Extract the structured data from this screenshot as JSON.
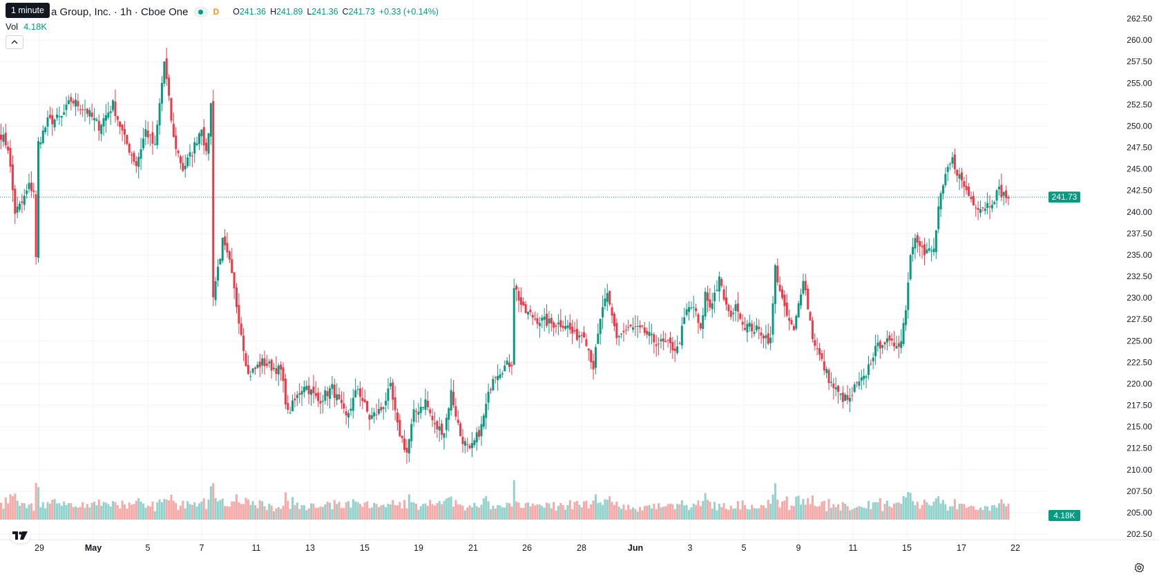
{
  "header": {
    "symbol_title": "a Group, Inc. · 1h · Cboe One",
    "source_badge": "D",
    "ohlc": {
      "open_label": "O",
      "open_value": "241.36",
      "high_label": "H",
      "high_value": "241.89",
      "low_label": "L",
      "low_value": "241.36",
      "close_label": "C",
      "close_value": "241.73",
      "change": "+0.33 (+0.14%)"
    },
    "tooltip": "1 minute"
  },
  "volume_legend": {
    "label": "Vol",
    "value": "4.18K"
  },
  "colors": {
    "up": "#089981",
    "down": "#F23645",
    "up_volume": "#92D2CC",
    "down_volume": "#F7A9A7",
    "grid": "#F0F3FA",
    "text": "#131722"
  },
  "icons": {
    "collapse": "chevron-up-icon",
    "logo": "tradingview-logo-icon",
    "settings": "gear-icon"
  },
  "chart_data": {
    "type": "candlestick",
    "timeframe": "1h",
    "price_axis": {
      "ticks": [
        "262.50",
        "260.00",
        "257.50",
        "255.00",
        "252.50",
        "250.00",
        "247.50",
        "245.00",
        "242.50",
        "240.00",
        "237.50",
        "235.00",
        "232.50",
        "230.00",
        "227.50",
        "225.00",
        "222.50",
        "220.00",
        "217.50",
        "215.00",
        "212.50",
        "210.00",
        "207.50",
        "205.00",
        "202.50"
      ],
      "ylim": [
        201.5,
        263.5
      ]
    },
    "last_price_label": "241.73",
    "last_volume_label": "4.18K",
    "time_axis": {
      "ticks": [
        {
          "label": "29",
          "bold": false
        },
        {
          "label": "May",
          "bold": true
        },
        {
          "label": "5",
          "bold": false
        },
        {
          "label": "7",
          "bold": false
        },
        {
          "label": "11",
          "bold": false
        },
        {
          "label": "13",
          "bold": false
        },
        {
          "label": "15",
          "bold": false
        },
        {
          "label": "19",
          "bold": false
        },
        {
          "label": "21",
          "bold": false
        },
        {
          "label": "26",
          "bold": false
        },
        {
          "label": "28",
          "bold": false
        },
        {
          "label": "Jun",
          "bold": true
        },
        {
          "label": "3",
          "bold": false
        },
        {
          "label": "5",
          "bold": false
        },
        {
          "label": "9",
          "bold": false
        },
        {
          "label": "11",
          "bold": false
        },
        {
          "label": "15",
          "bold": false
        },
        {
          "label": "17",
          "bold": false
        },
        {
          "label": "22",
          "bold": false
        }
      ]
    },
    "keypoints": [
      [
        0,
        249.0
      ],
      [
        3,
        247.5
      ],
      [
        6,
        240.0
      ],
      [
        9,
        241.0
      ],
      [
        12,
        243.0
      ],
      [
        14,
        242.5
      ],
      [
        15,
        234.5
      ],
      [
        16,
        248.0
      ],
      [
        20,
        250.5
      ],
      [
        26,
        251.0
      ],
      [
        30,
        253.0
      ],
      [
        36,
        252.0
      ],
      [
        42,
        250.0
      ],
      [
        48,
        252.5
      ],
      [
        53,
        248.5
      ],
      [
        58,
        245.5
      ],
      [
        62,
        249.5
      ],
      [
        66,
        247.5
      ],
      [
        70,
        257.5
      ],
      [
        72,
        253.0
      ],
      [
        74,
        248.5
      ],
      [
        78,
        245.0
      ],
      [
        82,
        247.0
      ],
      [
        86,
        250.0
      ],
      [
        88,
        246.5
      ],
      [
        90,
        252.5
      ],
      [
        91,
        230.5
      ],
      [
        95,
        236.5
      ],
      [
        98,
        234.0
      ],
      [
        103,
        226.0
      ],
      [
        106,
        221.0
      ],
      [
        112,
        222.5
      ],
      [
        120,
        221.5
      ],
      [
        123,
        216.5
      ],
      [
        130,
        220.0
      ],
      [
        136,
        218.0
      ],
      [
        142,
        219.5
      ],
      [
        148,
        216.0
      ],
      [
        153,
        219.5
      ],
      [
        158,
        216.0
      ],
      [
        163,
        217.0
      ],
      [
        167,
        219.5
      ],
      [
        170,
        215.0
      ],
      [
        174,
        212.0
      ],
      [
        177,
        216.5
      ],
      [
        182,
        218.0
      ],
      [
        186,
        215.0
      ],
      [
        190,
        214.5
      ],
      [
        193,
        219.0
      ],
      [
        197,
        214.0
      ],
      [
        201,
        212.0
      ],
      [
        206,
        215.0
      ],
      [
        211,
        221.0
      ],
      [
        216,
        222.0
      ],
      [
        219,
        222.5
      ],
      [
        220,
        231.5
      ],
      [
        224,
        228.5
      ],
      [
        230,
        227.5
      ],
      [
        236,
        227.0
      ],
      [
        242,
        227.0
      ],
      [
        246,
        225.5
      ],
      [
        250,
        226.0
      ],
      [
        254,
        222.0
      ],
      [
        258,
        229.0
      ],
      [
        260,
        230.0
      ],
      [
        264,
        225.5
      ],
      [
        270,
        226.5
      ],
      [
        276,
        226.0
      ],
      [
        280,
        225.0
      ],
      [
        286,
        224.5
      ],
      [
        290,
        224.0
      ],
      [
        294,
        228.5
      ],
      [
        297,
        229.0
      ],
      [
        300,
        226.0
      ],
      [
        302,
        230.5
      ],
      [
        304,
        229.0
      ],
      [
        308,
        232.0
      ],
      [
        312,
        228.0
      ],
      [
        316,
        229.0
      ],
      [
        318,
        227.0
      ],
      [
        322,
        226.5
      ],
      [
        326,
        226.0
      ],
      [
        330,
        225.0
      ],
      [
        332,
        233.5
      ],
      [
        336,
        228.5
      ],
      [
        340,
        226.0
      ],
      [
        344,
        232.5
      ],
      [
        348,
        225.5
      ],
      [
        352,
        222.5
      ],
      [
        356,
        220.0
      ],
      [
        360,
        218.5
      ],
      [
        364,
        218.0
      ],
      [
        366,
        219.5
      ],
      [
        370,
        220.5
      ],
      [
        374,
        223.5
      ],
      [
        378,
        225.0
      ],
      [
        382,
        224.5
      ],
      [
        386,
        225.0
      ],
      [
        388,
        229.0
      ],
      [
        390,
        235.0
      ],
      [
        392,
        237.5
      ],
      [
        394,
        236.5
      ],
      [
        396,
        235.0
      ],
      [
        398,
        235.5
      ],
      [
        400,
        235.5
      ],
      [
        402,
        240.5
      ],
      [
        406,
        245.0
      ],
      [
        408,
        246.0
      ],
      [
        412,
        243.5
      ],
      [
        416,
        241.5
      ],
      [
        420,
        240.5
      ],
      [
        424,
        241.0
      ],
      [
        428,
        242.5
      ],
      [
        430,
        242.0
      ],
      [
        432,
        241.7
      ]
    ]
  }
}
